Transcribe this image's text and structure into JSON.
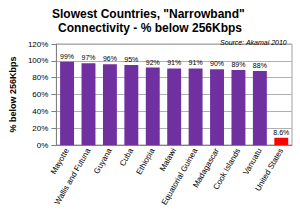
{
  "chart_data": {
    "type": "bar",
    "title": "Slowest Countries, \"Narrowband\" Connectivity - % below 256Kbps",
    "annotation": "Source: Akamai 2010",
    "y_label": "% below 256Kbps",
    "categories": [
      "Mayotte",
      "Wallis and Futuna",
      "Guyana",
      "Cuba",
      "Ethiopia",
      "Malawi",
      "Equatorial Guinea",
      "Madagascar",
      "Cook Islands",
      "Vanuatu",
      "United States"
    ],
    "values": [
      99,
      97,
      96,
      95,
      92,
      91,
      91,
      90,
      89,
      88,
      8.6
    ],
    "value_labels": [
      "99%",
      "97%",
      "96%",
      "95%",
      "92%",
      "91%",
      "91%",
      "90%",
      "89%",
      "88%",
      "8.6%"
    ],
    "colors": [
      "#7030a0",
      "#7030a0",
      "#7030a0",
      "#7030a0",
      "#7030a0",
      "#7030a0",
      "#7030a0",
      "#7030a0",
      "#7030a0",
      "#7030a0",
      "#ff0000"
    ],
    "ylim": [
      0,
      120
    ],
    "yticks": [
      {
        "value": 0,
        "label": "0%"
      },
      {
        "value": 20,
        "label": "20%"
      },
      {
        "value": 40,
        "label": "40%"
      },
      {
        "value": 60,
        "label": "60%"
      },
      {
        "value": 80,
        "label": "80%"
      },
      {
        "value": 100,
        "label": "100%"
      },
      {
        "value": 120,
        "label": "120%"
      }
    ],
    "grid": true,
    "data_labels": true
  }
}
